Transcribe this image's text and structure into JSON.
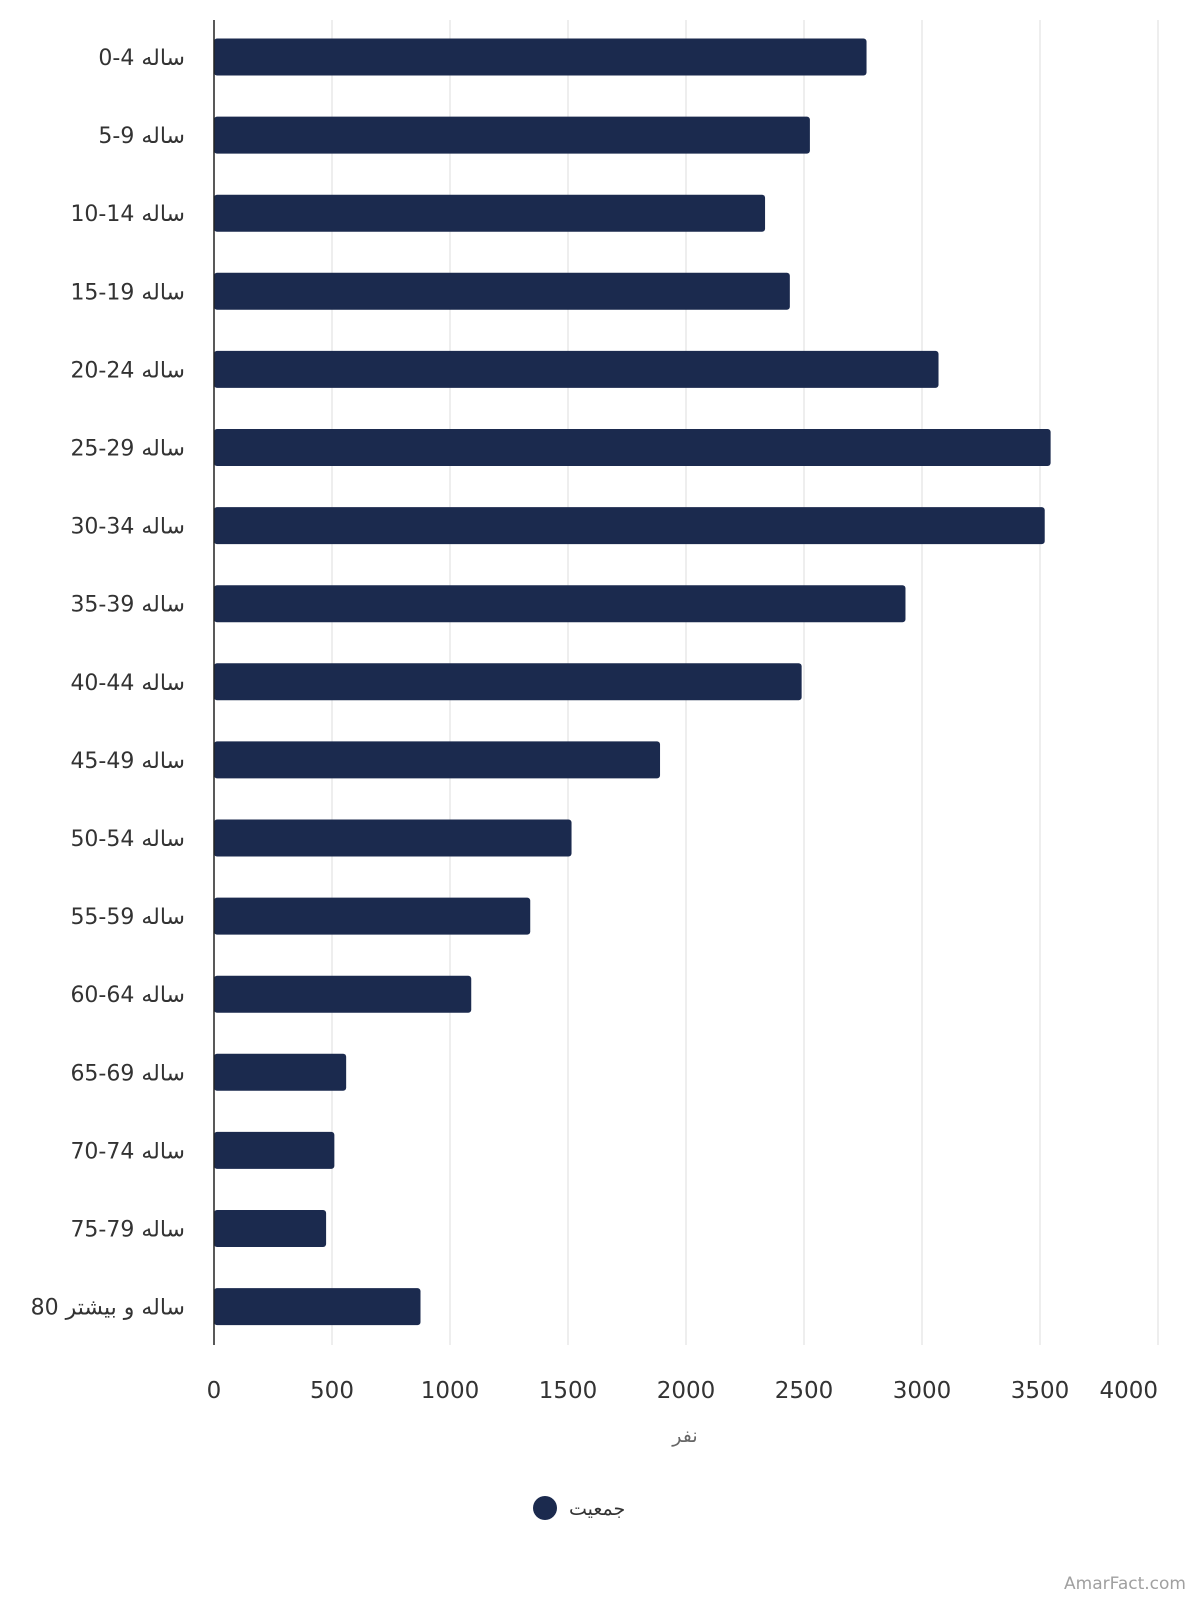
{
  "chart_data": {
    "type": "bar",
    "orientation": "horizontal",
    "categories": [
      "0-4 ساله",
      "5-9 ساله",
      "10-14 ساله",
      "15-19 ساله",
      "20-24 ساله",
      "25-29 ساله",
      "30-34 ساله",
      "35-39 ساله",
      "40-44 ساله",
      "45-49 ساله",
      "50-54 ساله",
      "55-59 ساله",
      "60-64 ساله",
      "65-69 ساله",
      "70-74 ساله",
      "75-79 ساله",
      "80 ساله و بیشتر"
    ],
    "series": [
      {
        "name": "جمعیت",
        "color": "#1b2a4e",
        "values": [
          2765,
          2525,
          2335,
          2440,
          3070,
          3545,
          3520,
          2930,
          2490,
          1890,
          1515,
          1340,
          1090,
          560,
          510,
          475,
          875
        ]
      }
    ],
    "xlabel": "نفر",
    "xlim": [
      0,
      4000
    ],
    "xticks": [
      0,
      500,
      1000,
      1500,
      2000,
      2500,
      3000,
      3500,
      4000
    ],
    "grid": true,
    "legend": "bottom-center"
  },
  "watermark": "AmarFact.com"
}
